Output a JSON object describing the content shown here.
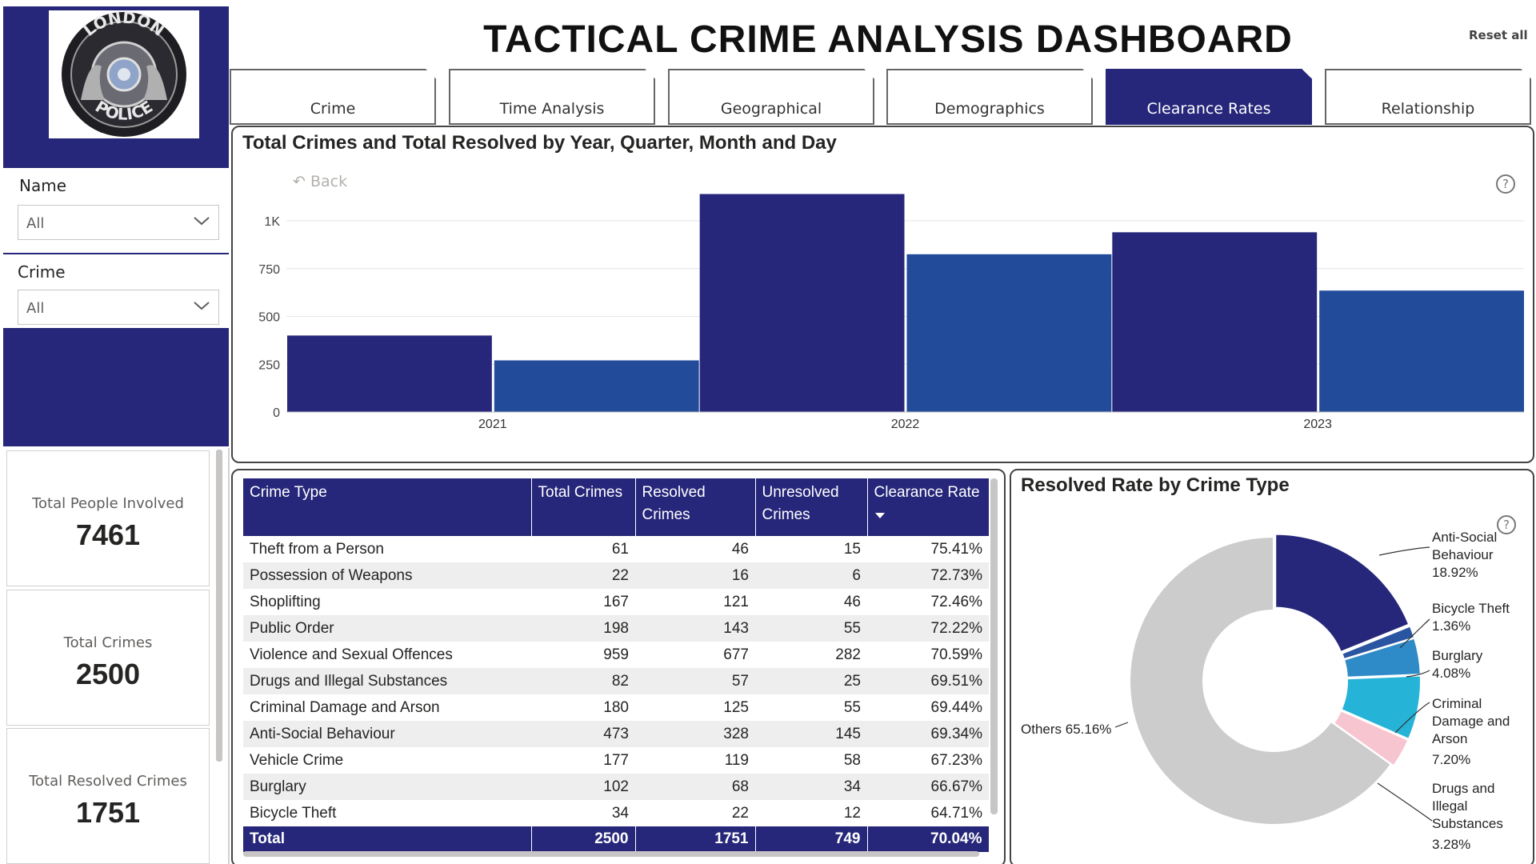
{
  "header": {
    "title": "TACTICAL CRIME ANALYSIS DASHBOARD",
    "reset_label": "Reset all"
  },
  "logo": {
    "text_top": "LONDON",
    "text_bottom": "POLICE"
  },
  "tabs": [
    {
      "label": "Crime",
      "active": false
    },
    {
      "label": "Time Analysis",
      "active": false
    },
    {
      "label": "Geographical",
      "active": false
    },
    {
      "label": "Demographics",
      "active": false
    },
    {
      "label": "Clearance Rates",
      "active": true
    },
    {
      "label": "Relationship",
      "active": false
    }
  ],
  "filters": {
    "name": {
      "label": "Name",
      "value": "All"
    },
    "crime": {
      "label": "Crime",
      "value": "All"
    }
  },
  "kpis": [
    {
      "label": "Total People Involved",
      "value": "7461"
    },
    {
      "label": "Total Crimes",
      "value": "2500"
    },
    {
      "label": "Total Resolved Crimes",
      "value": "1751"
    }
  ],
  "bar_chart": {
    "title": "Total Crimes and Total Resolved by Year, Quarter, Month and Day",
    "back_label": "Back"
  },
  "table": {
    "columns": [
      "Crime Type",
      "Total Crimes",
      "Resolved Crimes",
      "Unresolved Crimes",
      "Clearance Rate"
    ],
    "rows": [
      [
        "Theft from a Person",
        "61",
        "46",
        "15",
        "75.41%"
      ],
      [
        "Possession of Weapons",
        "22",
        "16",
        "6",
        "72.73%"
      ],
      [
        "Shoplifting",
        "167",
        "121",
        "46",
        "72.46%"
      ],
      [
        "Public Order",
        "198",
        "143",
        "55",
        "72.22%"
      ],
      [
        "Violence and Sexual Offences",
        "959",
        "677",
        "282",
        "70.59%"
      ],
      [
        "Drugs and Illegal Substances",
        "82",
        "57",
        "25",
        "69.51%"
      ],
      [
        "Criminal Damage and Arson",
        "180",
        "125",
        "55",
        "69.44%"
      ],
      [
        "Anti-Social Behaviour",
        "473",
        "328",
        "145",
        "69.34%"
      ],
      [
        "Vehicle Crime",
        "177",
        "119",
        "58",
        "67.23%"
      ],
      [
        "Burglary",
        "102",
        "68",
        "34",
        "66.67%"
      ],
      [
        "Bicycle Theft",
        "34",
        "22",
        "12",
        "64.71%"
      ]
    ],
    "total": [
      "Total",
      "2500",
      "1751",
      "749",
      "70.04%"
    ]
  },
  "donut": {
    "title": "Resolved Rate by Crime Type",
    "labels": {
      "anti_social": [
        "Anti-Social",
        "Behaviour",
        "18.92%"
      ],
      "bicycle": [
        "Bicycle Theft",
        "1.36%"
      ],
      "burglary": [
        "Burglary",
        "4.08%"
      ],
      "criminal": [
        "Criminal",
        "Damage and",
        "Arson",
        "7.20%"
      ],
      "drugs": [
        "Drugs and",
        "Illegal",
        "Substances",
        "3.28%"
      ],
      "others": "Others 65.16%"
    }
  },
  "chart_data": [
    {
      "type": "bar",
      "title": "Total Crimes and Total Resolved by Year, Quarter, Month and Day",
      "categories": [
        "2021",
        "2022",
        "2023"
      ],
      "series": [
        {
          "name": "",
          "values": [
            400,
            1140,
            940
          ],
          "color": "#26277a"
        },
        {
          "name": "",
          "values": [
            270,
            825,
            635
          ],
          "color": "#224b9a"
        }
      ],
      "yticks": [
        "0",
        "250",
        "500",
        "750",
        "1K"
      ],
      "ylim": [
        0,
        1200
      ],
      "grid": true
    },
    {
      "type": "pie",
      "title": "Resolved Rate by Crime Type",
      "slices": [
        {
          "label": "Anti-Social Behaviour",
          "value": 18.92,
          "color": "#26277a"
        },
        {
          "label": "Bicycle Theft",
          "value": 1.36,
          "color": "#2a55a0"
        },
        {
          "label": "Burglary",
          "value": 4.08,
          "color": "#2f8bc8"
        },
        {
          "label": "Criminal Damage and Arson",
          "value": 7.2,
          "color": "#26b3d8"
        },
        {
          "label": "Drugs and Illegal Substances",
          "value": 3.28,
          "color": "#f7c5d0"
        },
        {
          "label": "Others",
          "value": 65.16,
          "color": "#cccccc"
        }
      ]
    }
  ]
}
